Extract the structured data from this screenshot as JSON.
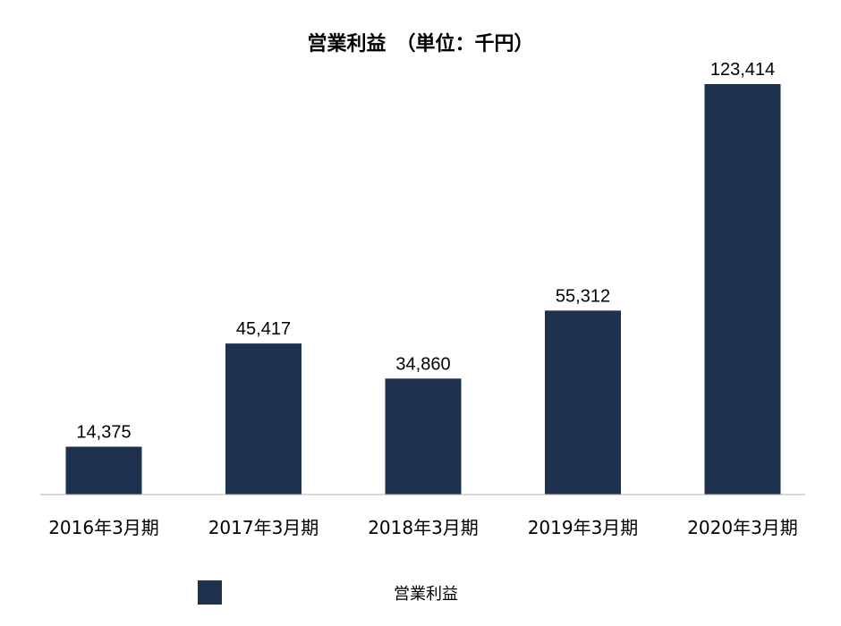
{
  "chart_data": {
    "type": "bar",
    "title": "営業利益　（単位：千円）",
    "categories": [
      "2016年3月期",
      "2017年3月期",
      "2018年3月期",
      "2019年3月期",
      "2020年3月期"
    ],
    "series": [
      {
        "name": "営業利益",
        "values": [
          14375,
          45417,
          34860,
          55312,
          123414
        ],
        "value_labels": [
          "14,375",
          "45,417",
          "34,860",
          "55,312",
          "123,414"
        ]
      }
    ],
    "ylim": [
      0,
      123414
    ],
    "xlabel": "",
    "ylabel": "",
    "grid": false,
    "legend": "bottom",
    "colors": {
      "bar": "#1e314f",
      "axis": "#b0b0b0"
    }
  }
}
